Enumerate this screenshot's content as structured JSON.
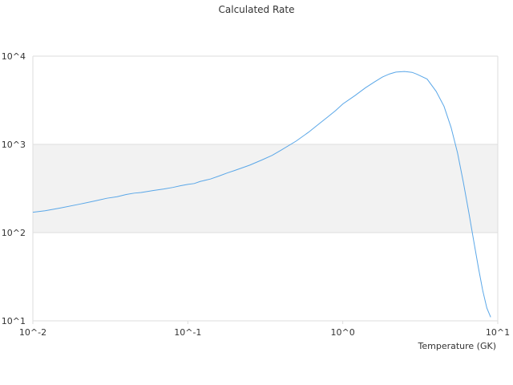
{
  "chart_data": {
    "type": "line",
    "title": "Calculated Rate",
    "xlabel": "Temperature (GK)",
    "ylabel": "",
    "xscale": "log",
    "yscale": "log",
    "xlim": [
      0.01,
      10
    ],
    "ylim": [
      10,
      10000
    ],
    "x_ticks": [
      "10^-2",
      "10^-1",
      "10^0",
      "10^1"
    ],
    "y_ticks": [
      "10^1",
      "10^2",
      "10^3",
      "10^4"
    ],
    "alternating_band": "10^2 to 10^3",
    "grid": true,
    "legend": "none",
    "colors": {
      "line": "#5aa7e8",
      "band": "#f2f2f2",
      "grid": "#dddddd",
      "text": "#333333"
    },
    "series": [
      {
        "x": [
          0.01,
          0.012,
          0.015,
          0.02,
          0.025,
          0.03,
          0.035,
          0.04,
          0.045,
          0.05,
          0.06,
          0.07,
          0.08,
          0.09,
          0.1,
          0.11,
          0.12,
          0.14,
          0.16,
          0.18,
          0.2,
          0.25,
          0.3,
          0.35,
          0.4,
          0.5,
          0.6,
          0.7,
          0.8,
          0.9,
          1.0,
          1.2,
          1.4,
          1.6,
          1.8,
          2.0,
          2.2,
          2.5,
          2.8,
          3.0,
          3.5,
          4.0,
          4.5,
          5.0,
          5.5,
          6.0,
          6.5,
          7.0,
          7.5,
          8.0,
          8.5,
          9.0
        ],
        "y": [
          170,
          177,
          190,
          210,
          228,
          245,
          255,
          270,
          280,
          285,
          300,
          312,
          325,
          340,
          352,
          360,
          380,
          405,
          440,
          475,
          505,
          580,
          665,
          750,
          860,
          1090,
          1370,
          1700,
          2050,
          2420,
          2870,
          3580,
          4380,
          5100,
          5800,
          6280,
          6600,
          6700,
          6550,
          6250,
          5500,
          4000,
          2700,
          1550,
          800,
          370,
          170,
          80,
          40,
          22,
          14,
          11
        ]
      }
    ]
  }
}
